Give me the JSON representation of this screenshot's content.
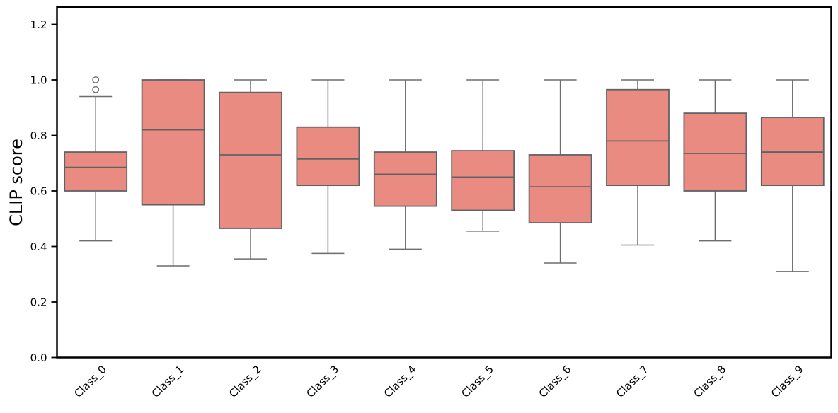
{
  "chart_data": {
    "type": "boxplot",
    "title": "",
    "xlabel": "",
    "ylabel": "CLIP score",
    "categories": [
      "Class_0",
      "Class_1",
      "Class_2",
      "Class_3",
      "Class_4",
      "Class_5",
      "Class_6",
      "Class_7",
      "Class_8",
      "Class_9"
    ],
    "ytick_labels": [
      "0.0",
      "0.2",
      "0.4",
      "0.6",
      "0.8",
      "1.0",
      "1.2"
    ],
    "ylim": [
      0.0,
      1.26
    ],
    "grid": false,
    "legend": "none",
    "boxes": [
      {
        "label": "Class_0",
        "whislo": 0.42,
        "q1": 0.6,
        "med": 0.685,
        "q3": 0.74,
        "whishi": 0.94,
        "fliers": [
          0.965,
          1.0
        ]
      },
      {
        "label": "Class_1",
        "whislo": 0.33,
        "q1": 0.55,
        "med": 0.82,
        "q3": 1.0,
        "whishi": 1.0,
        "fliers": []
      },
      {
        "label": "Class_2",
        "whislo": 0.355,
        "q1": 0.465,
        "med": 0.73,
        "q3": 0.955,
        "whishi": 1.0,
        "fliers": []
      },
      {
        "label": "Class_3",
        "whislo": 0.375,
        "q1": 0.62,
        "med": 0.715,
        "q3": 0.83,
        "whishi": 1.0,
        "fliers": []
      },
      {
        "label": "Class_4",
        "whislo": 0.39,
        "q1": 0.545,
        "med": 0.66,
        "q3": 0.74,
        "whishi": 1.0,
        "fliers": []
      },
      {
        "label": "Class_5",
        "whislo": 0.455,
        "q1": 0.53,
        "med": 0.65,
        "q3": 0.745,
        "whishi": 1.0,
        "fliers": []
      },
      {
        "label": "Class_6",
        "whislo": 0.34,
        "q1": 0.485,
        "med": 0.615,
        "q3": 0.73,
        "whishi": 1.0,
        "fliers": []
      },
      {
        "label": "Class_7",
        "whislo": 0.405,
        "q1": 0.62,
        "med": 0.78,
        "q3": 0.965,
        "whishi": 1.0,
        "fliers": []
      },
      {
        "label": "Class_8",
        "whislo": 0.42,
        "q1": 0.6,
        "med": 0.735,
        "q3": 0.88,
        "whishi": 1.0,
        "fliers": []
      },
      {
        "label": "Class_9",
        "whislo": 0.31,
        "q1": 0.62,
        "med": 0.74,
        "q3": 0.865,
        "whishi": 1.0,
        "fliers": []
      }
    ],
    "colors": {
      "box_fill": "#e98b80",
      "box_edge": "#5f6368",
      "whisker": "#6a6e71",
      "flier_edge": "#6a6e71",
      "axis": "#000000",
      "text": "#000000"
    }
  }
}
